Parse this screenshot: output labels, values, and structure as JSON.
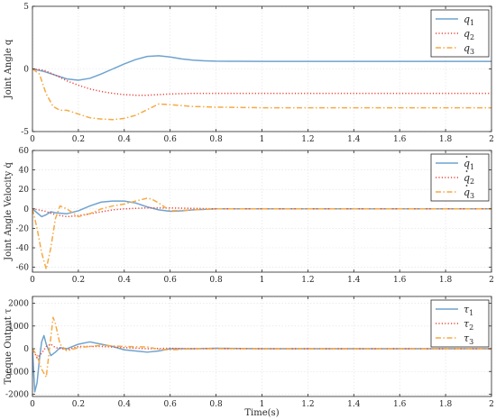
{
  "colors": {
    "series1": "#6fa3cf",
    "series2": "#e8463b",
    "series3": "#f5aa45"
  },
  "chart_data": [
    {
      "type": "line",
      "ylabel": "Joint Angle q",
      "xlabel": "",
      "xlim": [
        0,
        2
      ],
      "ylim": [
        -5,
        5
      ],
      "xticks": [
        0,
        0.2,
        0.4,
        0.6,
        0.8,
        1,
        1.2,
        1.4,
        1.6,
        1.8,
        2
      ],
      "xtick_labels": [
        "0",
        "0.2",
        "0.4",
        "0.6",
        "0.8",
        "1",
        "1.2",
        "1.4",
        "1.6",
        "1.8",
        "2"
      ],
      "yticks": [
        -5,
        0,
        5
      ],
      "ytick_labels": [
        "-5",
        "0",
        "5"
      ],
      "grid": true,
      "legend_position": "top-right",
      "series": [
        {
          "name": "q",
          "sub": "1",
          "dot": false,
          "style": "solid",
          "x": [
            0,
            0.05,
            0.1,
            0.15,
            0.2,
            0.25,
            0.3,
            0.35,
            0.4,
            0.45,
            0.5,
            0.55,
            0.6,
            0.65,
            0.7,
            0.75,
            0.8,
            0.9,
            1.0,
            1.2,
            1.5,
            1.8,
            2.0
          ],
          "y": [
            0,
            -0.2,
            -0.5,
            -0.8,
            -0.9,
            -0.75,
            -0.4,
            0,
            0.4,
            0.75,
            1.0,
            1.05,
            0.95,
            0.8,
            0.7,
            0.65,
            0.62,
            0.61,
            0.6,
            0.6,
            0.6,
            0.6,
            0.6
          ]
        },
        {
          "name": "q",
          "sub": "2",
          "dot": false,
          "style": "dotted",
          "x": [
            0,
            0.05,
            0.1,
            0.15,
            0.2,
            0.25,
            0.3,
            0.35,
            0.4,
            0.45,
            0.5,
            0.55,
            0.6,
            0.7,
            0.8,
            1.0,
            1.2,
            1.5,
            2.0
          ],
          "y": [
            0,
            -0.1,
            -0.5,
            -0.95,
            -1.3,
            -1.6,
            -1.8,
            -1.95,
            -2.05,
            -2.1,
            -2.1,
            -2.05,
            -2.0,
            -1.95,
            -1.95,
            -1.95,
            -1.95,
            -1.95,
            -1.95
          ]
        },
        {
          "name": "q",
          "sub": "3",
          "dot": false,
          "style": "dashdot",
          "x": [
            0,
            0.03,
            0.06,
            0.09,
            0.12,
            0.15,
            0.2,
            0.25,
            0.3,
            0.35,
            0.4,
            0.45,
            0.5,
            0.55,
            0.6,
            0.7,
            0.8,
            1.0,
            1.5,
            2.0
          ],
          "y": [
            0,
            -0.4,
            -2.0,
            -3.0,
            -3.3,
            -3.3,
            -3.6,
            -3.9,
            -4.0,
            -4.05,
            -3.95,
            -3.7,
            -3.25,
            -2.8,
            -2.85,
            -3.0,
            -3.05,
            -3.1,
            -3.1,
            -3.1
          ]
        }
      ]
    },
    {
      "type": "line",
      "ylabel": "Joint Angle Velocity q̇",
      "xlabel": "",
      "xlim": [
        0,
        2
      ],
      "ylim": [
        -65,
        60
      ],
      "xticks": [
        0,
        0.2,
        0.4,
        0.6,
        0.8,
        1,
        1.2,
        1.4,
        1.6,
        1.8,
        2
      ],
      "xtick_labels": [
        "0",
        "0.2",
        "0.4",
        "0.6",
        "0.8",
        "1",
        "1.2",
        "1.4",
        "1.6",
        "1.8",
        "2"
      ],
      "yticks": [
        -60,
        -40,
        -20,
        0,
        20,
        40,
        60
      ],
      "ytick_labels": [
        "-60",
        "-40",
        "-20",
        "0",
        "20",
        "40",
        "60"
      ],
      "grid": true,
      "legend_position": "top-right",
      "series": [
        {
          "name": "q",
          "sub": "1",
          "dot": true,
          "style": "solid",
          "x": [
            0,
            0.02,
            0.04,
            0.06,
            0.08,
            0.1,
            0.15,
            0.2,
            0.25,
            0.3,
            0.35,
            0.4,
            0.45,
            0.5,
            0.55,
            0.6,
            0.65,
            0.7,
            0.8,
            1.0,
            1.5,
            2.0
          ],
          "y": [
            0,
            -4,
            -8,
            -6,
            -3,
            -4,
            -5,
            -2,
            3,
            7,
            8,
            8,
            6,
            2,
            -1,
            -2.5,
            -2.0,
            -1,
            0,
            0,
            0,
            0
          ]
        },
        {
          "name": "q",
          "sub": "2",
          "dot": true,
          "style": "dotted",
          "x": [
            0,
            0.05,
            0.1,
            0.15,
            0.2,
            0.25,
            0.3,
            0.35,
            0.4,
            0.5,
            0.6,
            0.7,
            0.8,
            1.0,
            1.5,
            2.0
          ],
          "y": [
            0,
            -2,
            -6,
            -8,
            -7,
            -5,
            -3,
            -1,
            0,
            1,
            1,
            0.5,
            0,
            0,
            0,
            0
          ]
        },
        {
          "name": "q",
          "sub": "3",
          "dot": true,
          "style": "dashdot",
          "x": [
            0,
            0.02,
            0.04,
            0.06,
            0.08,
            0.1,
            0.12,
            0.15,
            0.2,
            0.25,
            0.3,
            0.35,
            0.4,
            0.45,
            0.5,
            0.52,
            0.55,
            0.6,
            0.7,
            0.8,
            1.0,
            2.0
          ],
          "y": [
            0,
            -20,
            -45,
            -62,
            -40,
            -10,
            3,
            0,
            -8,
            -5,
            0,
            3,
            5,
            8,
            11,
            10,
            6,
            -2,
            -1,
            0,
            0,
            0
          ]
        }
      ]
    },
    {
      "type": "line",
      "ylabel": "Toeque Output τ",
      "xlabel": "Time(s)",
      "xlim": [
        0,
        2
      ],
      "ylim": [
        -2100,
        2300
      ],
      "xticks": [
        0,
        0.2,
        0.4,
        0.6,
        0.8,
        1,
        1.2,
        1.4,
        1.6,
        1.8,
        2
      ],
      "xtick_labels": [
        "0",
        "0.2",
        "0.4",
        "0.6",
        "0.8",
        "1",
        "1.2",
        "1.4",
        "1.6",
        "1.8",
        "2"
      ],
      "yticks": [
        -2000,
        -1000,
        0,
        1000,
        2000
      ],
      "ytick_labels": [
        "-2000",
        "-1000",
        "0",
        "1000",
        "2000"
      ],
      "grid": true,
      "legend_position": "top-right",
      "series": [
        {
          "name": "τ",
          "sub": "1",
          "dot": false,
          "style": "solid",
          "x": [
            0,
            0.01,
            0.02,
            0.03,
            0.04,
            0.05,
            0.06,
            0.08,
            0.1,
            0.12,
            0.15,
            0.2,
            0.25,
            0.3,
            0.35,
            0.4,
            0.45,
            0.5,
            0.55,
            0.6,
            0.7,
            0.8,
            1.0,
            2.0
          ],
          "y": [
            0,
            -1900,
            -1500,
            -500,
            300,
            580,
            200,
            -300,
            -150,
            50,
            0,
            200,
            300,
            200,
            100,
            -50,
            -100,
            -150,
            -100,
            0,
            0,
            20,
            0,
            0
          ]
        },
        {
          "name": "τ",
          "sub": "2",
          "dot": false,
          "style": "dotted",
          "x": [
            0,
            0.02,
            0.04,
            0.06,
            0.08,
            0.1,
            0.15,
            0.2,
            0.3,
            0.4,
            0.5,
            0.6,
            0.7,
            0.8,
            1.0,
            2.0
          ],
          "y": [
            0,
            -400,
            -200,
            100,
            200,
            50,
            -50,
            100,
            100,
            50,
            0,
            20,
            0,
            0,
            0,
            0
          ]
        },
        {
          "name": "τ",
          "sub": "3",
          "dot": false,
          "style": "dashdot",
          "x": [
            0,
            0.02,
            0.04,
            0.06,
            0.08,
            0.09,
            0.1,
            0.12,
            0.15,
            0.2,
            0.25,
            0.3,
            0.4,
            0.5,
            0.55,
            0.6,
            0.7,
            0.8,
            1.0,
            2.0
          ],
          "y": [
            0,
            -300,
            -900,
            -1250,
            500,
            1380,
            1100,
            200,
            -100,
            50,
            100,
            150,
            100,
            80,
            -20,
            -50,
            0,
            0,
            0,
            0
          ]
        }
      ]
    }
  ]
}
